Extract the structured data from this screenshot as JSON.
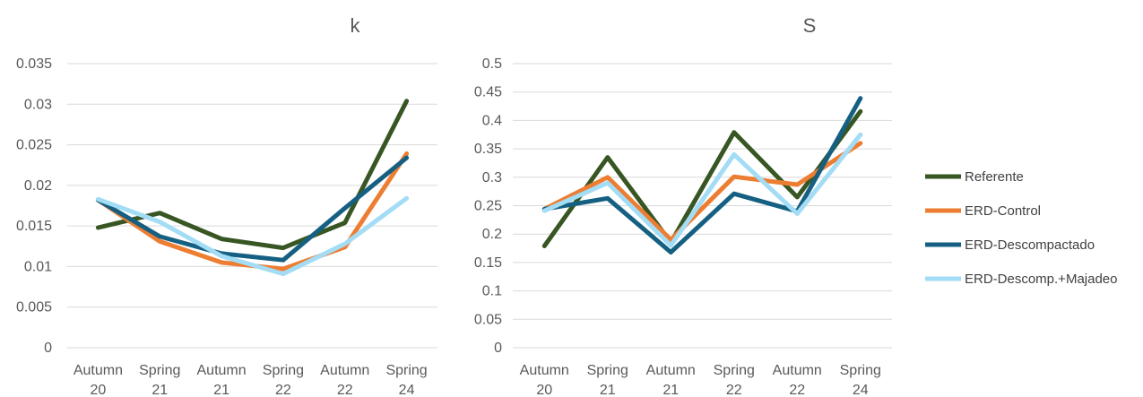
{
  "chart_data": [
    {
      "type": "line",
      "title": "k",
      "xlabel": "",
      "ylabel": "",
      "categories": [
        [
          "Autumn",
          "20"
        ],
        [
          "Spring",
          "21"
        ],
        [
          "Autumn",
          "21"
        ],
        [
          "Spring",
          "22"
        ],
        [
          "Autumn",
          "22"
        ],
        [
          "Spring",
          "24"
        ]
      ],
      "ylim": [
        0,
        0.035
      ],
      "yticks": [
        "0",
        "0.005",
        "0.01",
        "0.015",
        "0.02",
        "0.025",
        "0.03",
        "0.035"
      ],
      "grid": true,
      "series": [
        {
          "name": "Referente",
          "values": [
            0.0148,
            0.0166,
            0.0134,
            0.0123,
            0.0154,
            0.0304
          ]
        },
        {
          "name": "ERD-Control",
          "values": [
            0.0182,
            0.0131,
            0.0105,
            0.0097,
            0.0124,
            0.0239
          ]
        },
        {
          "name": "ERD-Descompactado",
          "values": [
            0.0182,
            0.0137,
            0.0116,
            0.0108,
            0.0172,
            0.0234
          ]
        },
        {
          "name": "ERD-Descomp.+Majadeo",
          "values": [
            0.0183,
            0.0155,
            0.0113,
            0.0091,
            0.0128,
            0.0184
          ]
        }
      ]
    },
    {
      "type": "line",
      "title": "S",
      "xlabel": "",
      "ylabel": "",
      "categories": [
        [
          "Autumn",
          "20"
        ],
        [
          "Spring",
          "21"
        ],
        [
          "Autumn",
          "21"
        ],
        [
          "Spring",
          "22"
        ],
        [
          "Autumn",
          "22"
        ],
        [
          "Spring",
          "24"
        ]
      ],
      "ylim": [
        0,
        0.5
      ],
      "yticks": [
        "0",
        "0.05",
        "0.1",
        "0.15",
        "0.2",
        "0.25",
        "0.3",
        "0.35",
        "0.4",
        "0.45",
        "0.5"
      ],
      "grid": true,
      "legend_position": "right",
      "series": [
        {
          "name": "Referente",
          "values": [
            0.179,
            0.335,
            0.185,
            0.379,
            0.265,
            0.416
          ]
        },
        {
          "name": "ERD-Control",
          "values": [
            0.244,
            0.3,
            0.19,
            0.301,
            0.287,
            0.36
          ]
        },
        {
          "name": "ERD-Descompactado",
          "values": [
            0.244,
            0.263,
            0.168,
            0.271,
            0.24,
            0.439
          ]
        },
        {
          "name": "ERD-Descomp.+Majadeo",
          "values": [
            0.241,
            0.29,
            0.18,
            0.34,
            0.236,
            0.375
          ]
        }
      ]
    }
  ],
  "colors": {
    "Referente": "#375623",
    "ERD-Control": "#ed7d31",
    "ERD-Descompactado": "#156082",
    "ERD-Descomp.+Majadeo": "#a3dcf5"
  }
}
